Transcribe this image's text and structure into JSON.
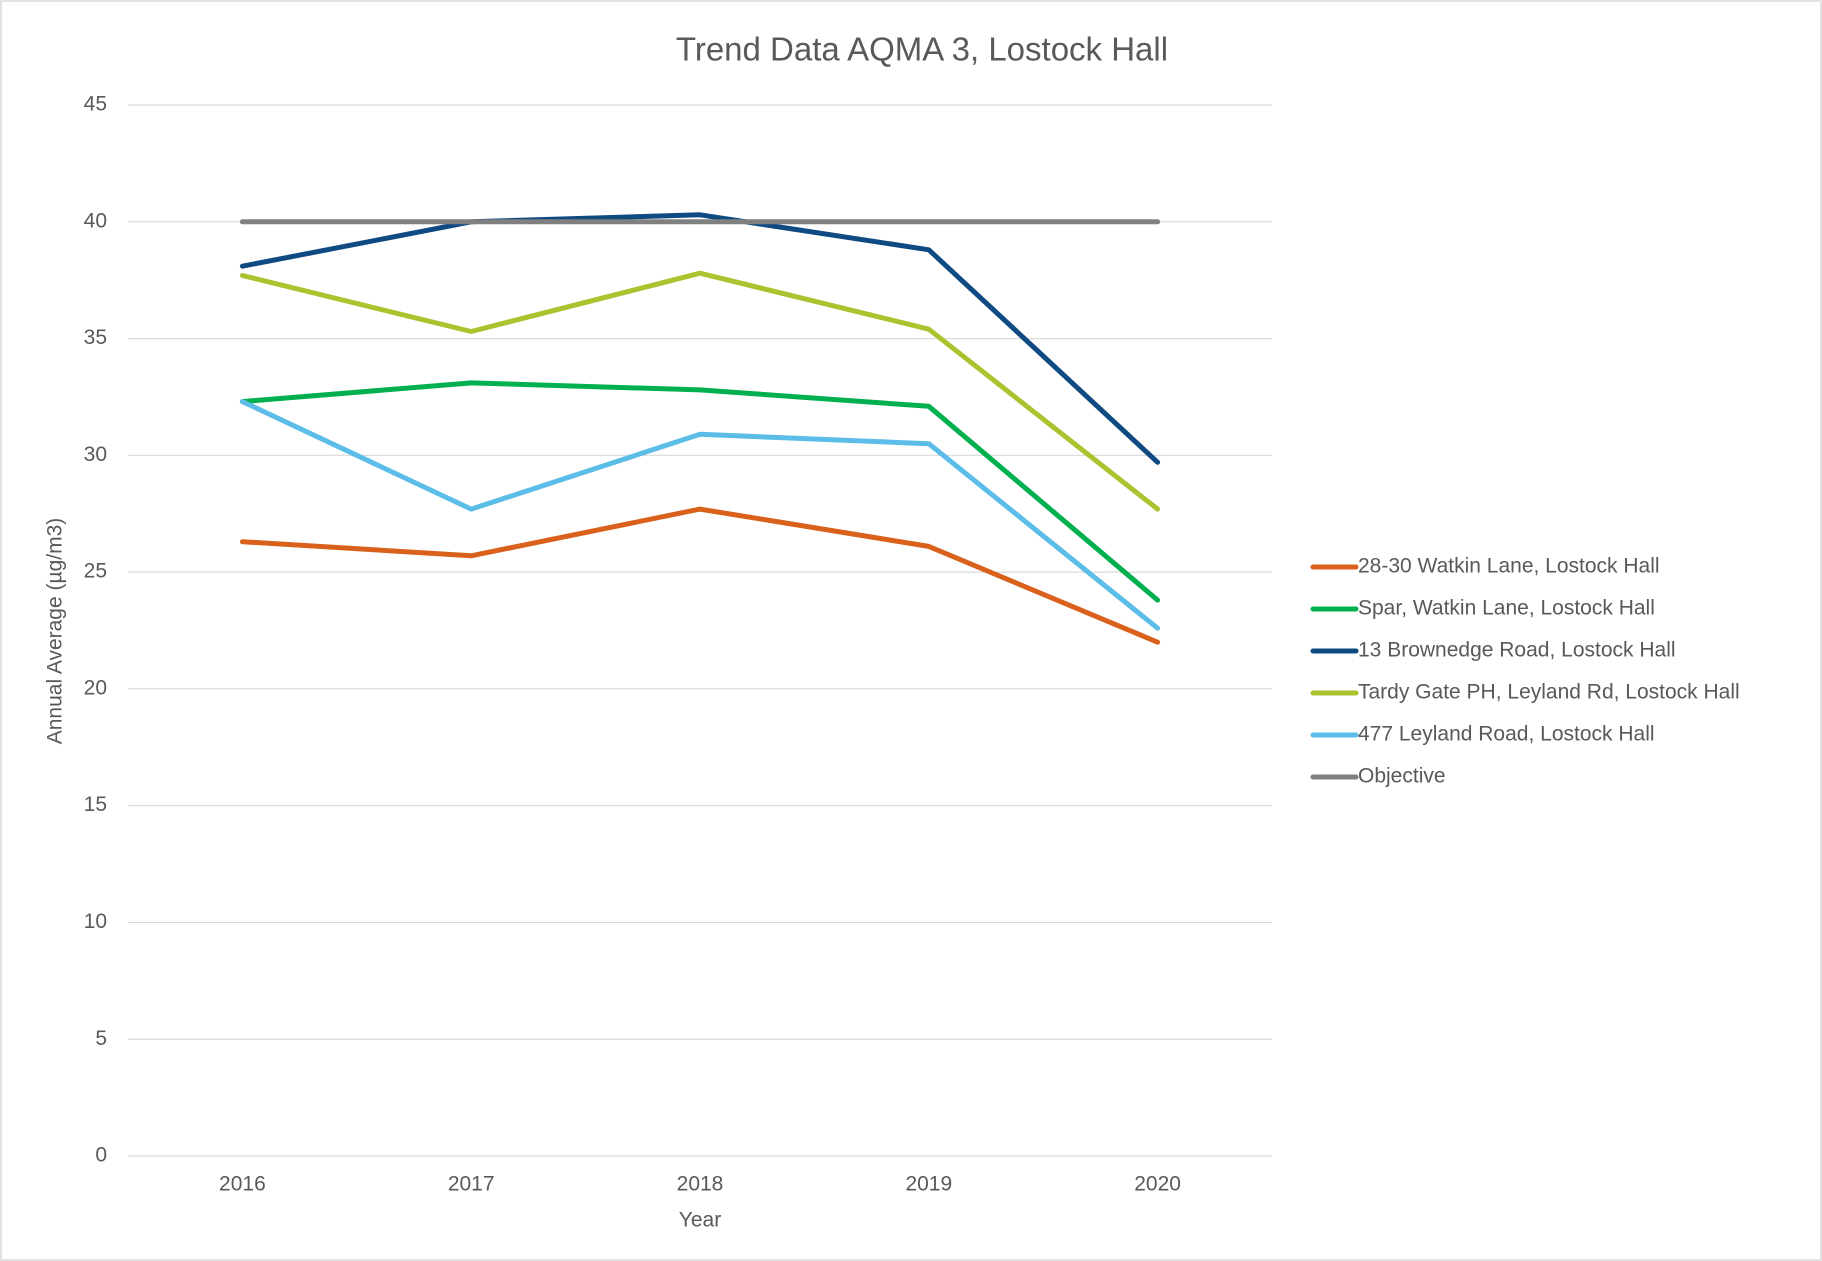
{
  "chart_data": {
    "type": "line",
    "title": "Trend Data AQMA 3, Lostock Hall",
    "x_label": "Year",
    "y_label": "Annual Average (µg/m3)",
    "categories": [
      "2016",
      "2017",
      "2018",
      "2019",
      "2020"
    ],
    "series": [
      {
        "name": "28-30 Watkin Lane, Lostock Hall",
        "color": "#d9611c",
        "values": [
          26.3,
          25.7,
          27.7,
          26.1,
          22.0
        ]
      },
      {
        "name": "Spar, Watkin Lane, Lostock Hall",
        "color": "#00b04f",
        "values": [
          32.3,
          33.1,
          32.8,
          32.1,
          23.8
        ]
      },
      {
        "name": "13 Brownedge Road, Lostock Hall",
        "color": "#0f4a82",
        "values": [
          38.1,
          40.0,
          40.3,
          38.8,
          29.7
        ]
      },
      {
        "name": "Tardy Gate PH, Leyland Rd, Lostock Hall",
        "color": "#a9c42f",
        "values": [
          37.7,
          35.3,
          37.8,
          35.4,
          27.7
        ]
      },
      {
        "name": "477 Leyland Road, Lostock Hall",
        "color": "#5bbde8",
        "values": [
          32.3,
          27.7,
          30.9,
          30.5,
          22.6
        ]
      },
      {
        "name": "Objective",
        "color": "#808080",
        "values": [
          40,
          40,
          40,
          40,
          40
        ]
      }
    ],
    "ylim": [
      0,
      45
    ],
    "yticks": [
      0,
      5,
      10,
      15,
      20,
      25,
      30,
      35,
      40,
      45
    ],
    "grid": true,
    "legend": "right"
  }
}
